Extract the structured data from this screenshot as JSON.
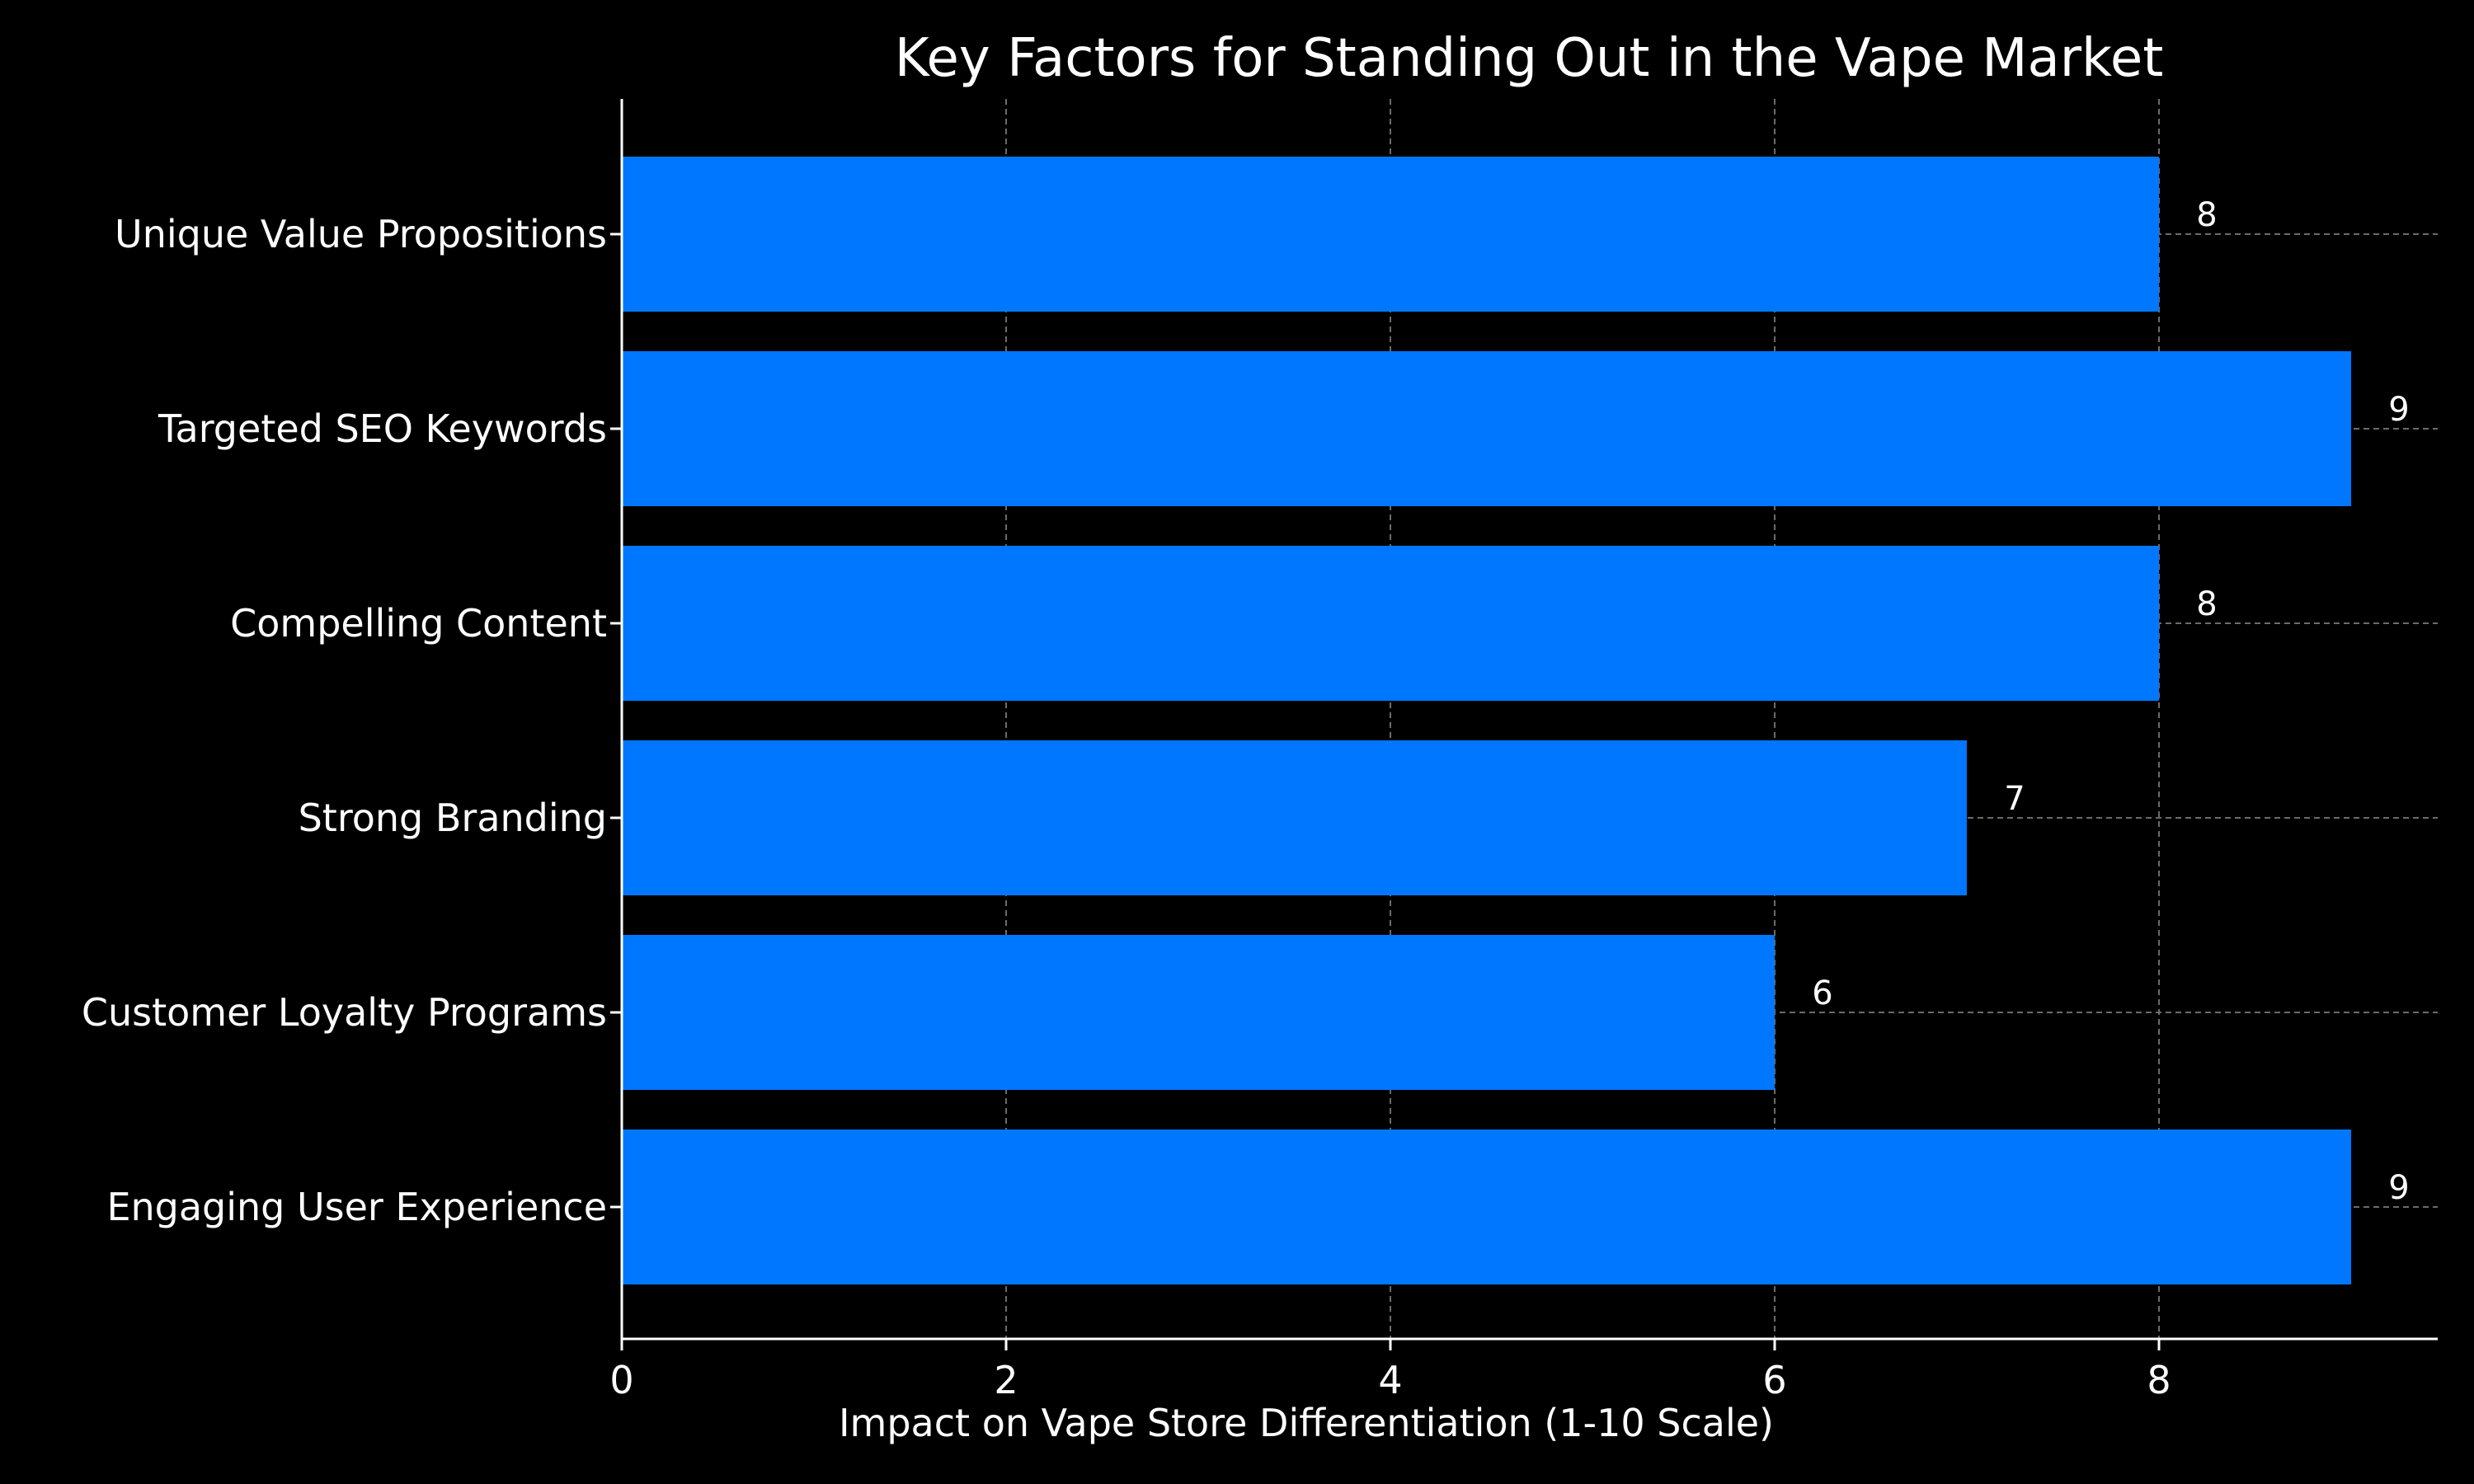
{
  "chart_data": {
    "type": "bar",
    "orientation": "horizontal",
    "title": "Key Factors for Standing Out in the Vape Market",
    "xlabel": "Impact on Vape Store Differentiation (1-10 Scale)",
    "ylabel": "",
    "categories": [
      "Unique Value Propositions",
      "Targeted SEO Keywords",
      "Compelling Content",
      "Strong Branding",
      "Customer Loyalty Programs",
      "Engaging User Experience"
    ],
    "values": [
      8,
      9,
      8,
      7,
      6,
      9
    ],
    "data_labels": [
      "8",
      "9",
      "8",
      "7",
      "6",
      "9"
    ],
    "x_ticks": [
      0,
      2,
      4,
      6,
      8
    ],
    "xlim": [
      0,
      9.45
    ],
    "grid": true,
    "legend": "none",
    "bar_color": "#0077ff",
    "background_color": "#000000",
    "text_color": "#ffffff",
    "grid_color": "#777777"
  }
}
